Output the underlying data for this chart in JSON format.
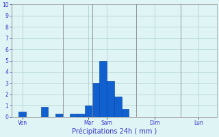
{
  "bar_values": [
    0,
    0.5,
    0,
    0,
    0.9,
    0,
    0.3,
    0,
    0.3,
    0.3,
    1.0,
    3.0,
    5.0,
    3.2,
    1.8,
    0.7,
    0,
    0,
    0,
    0,
    0,
    0,
    0,
    0,
    0,
    0,
    0,
    0
  ],
  "bar_color": "#1060d0",
  "bar_edge_color": "#0040a0",
  "background_color": "#dff4f4",
  "grid_color": "#aacccc",
  "axis_color": "#aaaaaa",
  "title": "Précipitations 24h ( mm )",
  "ylim": [
    0,
    10
  ],
  "yticks": [
    0,
    1,
    2,
    3,
    4,
    5,
    6,
    7,
    8,
    9,
    10
  ],
  "day_labels": [
    "Ven",
    "Mar",
    "Sam",
    "Dim",
    "Lun"
  ],
  "day_tick_positions": [
    1.5,
    10.5,
    13.0,
    19.5,
    25.5
  ],
  "vline_positions": [
    0,
    7,
    11,
    17,
    23,
    28
  ],
  "xlabel_color": "#3333cc",
  "tick_color": "#3333cc",
  "num_bars": 28,
  "title_fontsize": 7,
  "tick_fontsize": 5.5,
  "xlabel_fontsize": 7
}
